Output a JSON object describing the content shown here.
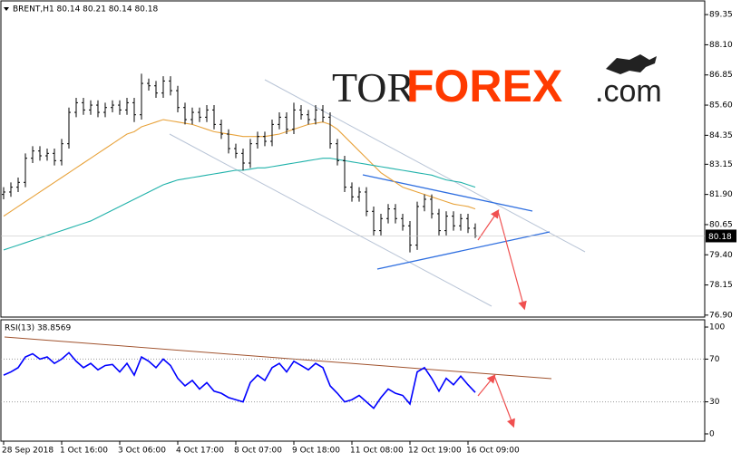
{
  "watermark": {
    "prefix": "TOR",
    "main": "FOREX",
    "suffix": ".com"
  },
  "chart_data": [
    {
      "type": "ohlc",
      "title": "BRENT,H1  80.14 80.21 80.14 80.18",
      "categories": [
        "28 Sep 2018",
        null,
        null,
        null,
        null,
        null,
        null,
        null,
        "1 Oct 16:00",
        null,
        null,
        null,
        null,
        null,
        null,
        null,
        "3 Oct 06:00",
        null,
        null,
        null,
        null,
        null,
        null,
        null,
        "4 Oct 17:00",
        null,
        null,
        null,
        null,
        null,
        null,
        null,
        "8 Oct 07:00",
        null,
        null,
        null,
        null,
        null,
        null,
        null,
        "9 Oct 18:00",
        null,
        null,
        null,
        null,
        null,
        null,
        null,
        "11 Oct 08:00",
        null,
        null,
        null,
        null,
        null,
        null,
        null,
        "12 Oct 19:00",
        null,
        null,
        null,
        null,
        null,
        null,
        null,
        "16 Oct 09:00",
        null
      ],
      "open": [
        81.9,
        82.0,
        82.2,
        82.4,
        83.4,
        83.7,
        83.5,
        83.6,
        83.3,
        84.0,
        85.3,
        85.7,
        85.4,
        85.6,
        85.3,
        85.5,
        85.6,
        85.4,
        85.7,
        85.2,
        86.5,
        86.4,
        86.1,
        86.6,
        86.2,
        85.5,
        85.0,
        85.3,
        85.1,
        85.4,
        84.8,
        84.4,
        83.8,
        83.6,
        83.2,
        84.0,
        84.3,
        84.1,
        84.8,
        85.1,
        84.6,
        85.4,
        85.2,
        85.0,
        85.4,
        85.1,
        84.0,
        83.3,
        82.2,
        81.8,
        82.0,
        81.2,
        80.4,
        80.9,
        81.3,
        80.9,
        80.6,
        79.8,
        81.4,
        81.7,
        81.1,
        80.4,
        81.0,
        80.6,
        80.9,
        80.5
      ],
      "high": [
        82.2,
        82.4,
        82.6,
        83.6,
        83.9,
        83.9,
        83.8,
        83.8,
        84.2,
        85.5,
        85.9,
        85.9,
        85.8,
        85.8,
        85.7,
        85.8,
        85.8,
        85.9,
        85.9,
        86.9,
        86.7,
        86.6,
        86.8,
        86.8,
        86.4,
        85.7,
        85.5,
        85.5,
        85.6,
        85.6,
        85.0,
        84.6,
        84.0,
        83.8,
        84.2,
        84.5,
        84.5,
        85.0,
        85.3,
        85.3,
        85.7,
        85.6,
        85.4,
        85.6,
        85.6,
        85.3,
        84.2,
        83.5,
        82.4,
        82.2,
        82.2,
        81.4,
        81.1,
        81.5,
        81.5,
        81.1,
        80.8,
        81.6,
        81.9,
        81.9,
        81.3,
        81.2,
        81.2,
        81.1,
        81.1,
        80.7
      ],
      "low": [
        81.7,
        81.8,
        82.0,
        82.2,
        83.2,
        83.3,
        83.3,
        83.1,
        83.1,
        83.8,
        85.1,
        85.2,
        85.2,
        85.1,
        85.1,
        85.3,
        85.2,
        85.2,
        84.9,
        85.0,
        86.2,
        85.9,
        85.9,
        86.0,
        85.3,
        84.8,
        84.8,
        84.9,
        84.9,
        84.6,
        84.2,
        83.6,
        83.4,
        82.9,
        83.0,
        83.8,
        83.9,
        83.9,
        84.6,
        84.4,
        84.4,
        85.0,
        84.8,
        84.8,
        84.9,
        83.8,
        83.1,
        82.0,
        81.6,
        81.6,
        81.0,
        80.2,
        80.2,
        80.7,
        80.7,
        80.4,
        79.5,
        79.6,
        81.2,
        80.9,
        80.2,
        80.2,
        80.4,
        80.4,
        80.3,
        80.1
      ],
      "close": [
        82.0,
        82.2,
        82.4,
        83.4,
        83.7,
        83.5,
        83.6,
        83.3,
        84.0,
        85.3,
        85.7,
        85.4,
        85.6,
        85.3,
        85.5,
        85.6,
        85.4,
        85.7,
        85.2,
        86.5,
        86.4,
        86.1,
        86.6,
        86.2,
        85.5,
        85.0,
        85.3,
        85.1,
        85.4,
        84.8,
        84.4,
        83.8,
        83.6,
        83.2,
        84.0,
        84.3,
        84.1,
        84.8,
        85.1,
        84.6,
        85.4,
        85.2,
        85.0,
        85.4,
        85.1,
        84.0,
        83.3,
        82.2,
        81.8,
        82.0,
        81.2,
        80.4,
        80.9,
        81.3,
        80.9,
        80.6,
        79.8,
        81.4,
        81.7,
        81.1,
        80.4,
        81.0,
        80.6,
        80.9,
        80.5,
        80.18
      ],
      "color": "#000000",
      "series": [
        {
          "color": "#e8a33c",
          "values": [
            81.0,
            81.2,
            81.4,
            81.6,
            81.8,
            82.0,
            82.2,
            82.4,
            82.6,
            82.8,
            83.0,
            83.2,
            83.4,
            83.6,
            83.8,
            84.0,
            84.2,
            84.4,
            84.5,
            84.7,
            84.8,
            84.9,
            85.0,
            84.95,
            84.9,
            84.85,
            84.8,
            84.7,
            84.6,
            84.5,
            84.45,
            84.4,
            84.35,
            84.3,
            84.3,
            84.3,
            84.3,
            84.35,
            84.4,
            84.5,
            84.6,
            84.7,
            84.8,
            84.85,
            84.9,
            84.8,
            84.6,
            84.3,
            84.0,
            83.7,
            83.4,
            83.1,
            82.8,
            82.6,
            82.4,
            82.2,
            82.1,
            82.0,
            81.9,
            81.8,
            81.7,
            81.6,
            81.5,
            81.45,
            81.4,
            81.3
          ]
        },
        {
          "color": "#20b2aa",
          "values": [
            79.6,
            79.7,
            79.8,
            79.9,
            80.0,
            80.1,
            80.2,
            80.3,
            80.4,
            80.5,
            80.6,
            80.7,
            80.8,
            80.95,
            81.1,
            81.25,
            81.4,
            81.55,
            81.7,
            81.85,
            82.0,
            82.15,
            82.3,
            82.4,
            82.5,
            82.55,
            82.6,
            82.65,
            82.7,
            82.75,
            82.8,
            82.85,
            82.9,
            82.9,
            82.95,
            83.0,
            83.0,
            83.05,
            83.1,
            83.15,
            83.2,
            83.25,
            83.3,
            83.35,
            83.4,
            83.4,
            83.35,
            83.3,
            83.25,
            83.2,
            83.15,
            83.1,
            83.05,
            83.0,
            82.95,
            82.9,
            82.85,
            82.8,
            82.75,
            82.7,
            82.6,
            82.5,
            82.45,
            82.4,
            82.3,
            82.2
          ]
        }
      ],
      "ylim": [
        76.82,
        89.88
      ],
      "yticks": [
        {
          "value": 89.35,
          "label": "89.35"
        },
        {
          "value": 88.1,
          "label": "88.10"
        },
        {
          "value": 86.85,
          "label": "86.85"
        },
        {
          "value": 85.6,
          "label": "85.60"
        },
        {
          "value": 84.35,
          "label": "84.35"
        },
        {
          "value": 83.15,
          "label": "83.15"
        },
        {
          "value": 81.9,
          "label": "81.90"
        },
        {
          "value": 80.65,
          "label": "80.65"
        },
        {
          "value": 79.4,
          "label": "79.40"
        },
        {
          "value": 78.15,
          "label": "78.15"
        },
        {
          "value": 76.9,
          "label": "76.90"
        }
      ]
    },
    {
      "type": "line",
      "title": "RSI(13) 38.8569",
      "series": [
        {
          "color": "#0000ff",
          "values": [
            55,
            58,
            62,
            72,
            75,
            70,
            72,
            66,
            70,
            76,
            68,
            62,
            66,
            60,
            64,
            65,
            58,
            66,
            55,
            72,
            68,
            62,
            70,
            64,
            52,
            45,
            50,
            42,
            48,
            40,
            38,
            34,
            32,
            30,
            48,
            55,
            50,
            62,
            66,
            58,
            68,
            64,
            60,
            66,
            62,
            45,
            38,
            30,
            32,
            36,
            30,
            24,
            34,
            42,
            38,
            36,
            28,
            58,
            62,
            52,
            40,
            52,
            46,
            54,
            46,
            38.8569
          ]
        }
      ],
      "ylim": [
        -6.8,
        106.8
      ],
      "yticks": [
        100,
        70,
        30,
        0
      ]
    }
  ]
}
